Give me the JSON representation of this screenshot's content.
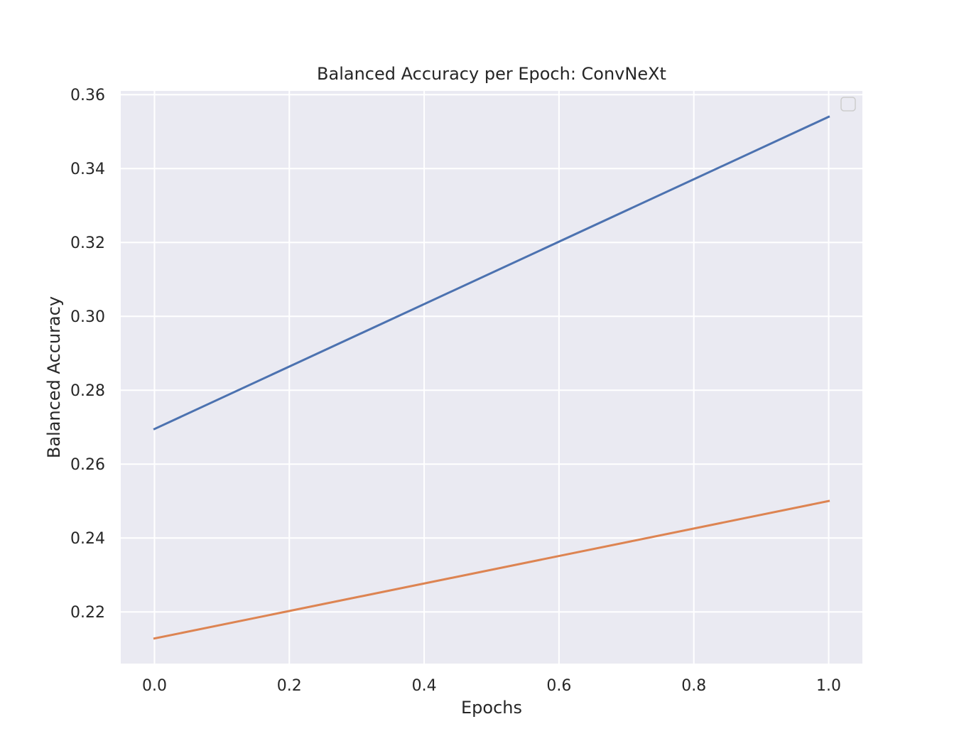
{
  "chart_data": {
    "type": "line",
    "title": "Balanced Accuracy per Epoch: ConvNeXt",
    "xlabel": "Epochs",
    "ylabel": "Balanced Accuracy",
    "xlim": [
      -0.05,
      1.05
    ],
    "ylim": [
      0.206,
      0.361
    ],
    "xticks": [
      0.0,
      0.2,
      0.4,
      0.6,
      0.8,
      1.0
    ],
    "xtick_labels": [
      "0.0",
      "0.2",
      "0.4",
      "0.6",
      "0.8",
      "1.0"
    ],
    "yticks": [
      0.22,
      0.24,
      0.26,
      0.28,
      0.3,
      0.32,
      0.34,
      0.36
    ],
    "ytick_labels": [
      "0.22",
      "0.24",
      "0.26",
      "0.28",
      "0.30",
      "0.32",
      "0.34",
      "0.36"
    ],
    "grid": true,
    "legend": {
      "location": "upper right",
      "entries": []
    },
    "colors": {
      "background": "#eaeaf2",
      "grid": "#ffffff"
    },
    "series": [
      {
        "color": "#4c72b0",
        "x": [
          0.0,
          1.0
        ],
        "y": [
          0.2695,
          0.354
        ]
      },
      {
        "color": "#dd8452",
        "x": [
          0.0,
          1.0
        ],
        "y": [
          0.2128,
          0.25
        ]
      }
    ]
  }
}
